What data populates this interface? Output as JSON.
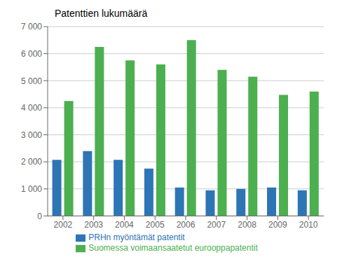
{
  "chart_data": {
    "type": "bar",
    "title": "Patenttien lukumäärä",
    "categories": [
      "2002",
      "2003",
      "2004",
      "2005",
      "2006",
      "2007",
      "2008",
      "2009",
      "2010"
    ],
    "series": [
      {
        "name": "PRHn myöntämät patentit",
        "color": "#2E75B6",
        "values": [
          2075,
          2400,
          2075,
          1750,
          1050,
          950,
          1000,
          1050,
          950
        ]
      },
      {
        "name": "Suomessa voimaansaatetut eurooppapatentit",
        "color": "#4CAF50",
        "values": [
          4250,
          6250,
          5750,
          5600,
          6500,
          5400,
          5150,
          4475,
          4600
        ]
      }
    ],
    "ylim": [
      0,
      7000
    ],
    "yticks": [
      0,
      {
        "value": 1000,
        "label": "1 000"
      },
      {
        "value": 2000,
        "label": "2 000"
      },
      {
        "value": 3000,
        "label": "3 000"
      },
      {
        "value": 4000,
        "label": "4 000"
      },
      {
        "value": 5000,
        "label": "5 000"
      },
      {
        "value": 6000,
        "label": "6 000"
      },
      {
        "value": 7000,
        "label": "7 000"
      }
    ],
    "grid": true,
    "legend": "bottom"
  }
}
